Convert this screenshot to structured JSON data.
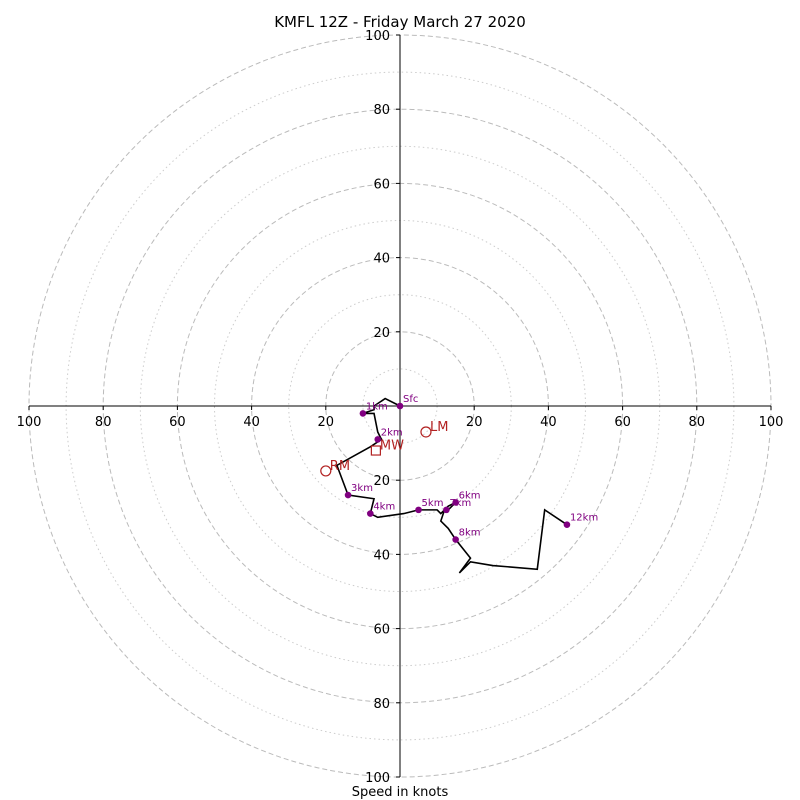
{
  "chart_data": {
    "type": "line",
    "title": "KMFL 12Z - Friday March 27 2020",
    "xlabel": "Speed in knots",
    "units": "knots",
    "range": [
      -100,
      100
    ],
    "major_rings": [
      20,
      40,
      60,
      80,
      100
    ],
    "minor_rings": [
      10,
      30,
      50,
      70,
      90
    ],
    "x_tick_labels": [
      "100",
      "80",
      "60",
      "40",
      "20",
      "20",
      "40",
      "60",
      "80",
      "100"
    ],
    "x_tick_values": [
      -100,
      -80,
      -60,
      -40,
      -20,
      20,
      40,
      60,
      80,
      100
    ],
    "y_tick_labels": [
      "100",
      "80",
      "60",
      "40",
      "20",
      "20",
      "40",
      "60",
      "80",
      "100"
    ],
    "y_tick_values": [
      100,
      80,
      60,
      40,
      20,
      -20,
      -40,
      -60,
      -80,
      -100
    ],
    "hodograph_trace": [
      [
        0,
        0
      ],
      [
        -4,
        2
      ],
      [
        -7,
        0
      ],
      [
        -7,
        -1
      ],
      [
        -10,
        -2
      ],
      [
        -7,
        -2
      ],
      [
        -6,
        -7
      ],
      [
        -5,
        -9
      ],
      [
        -8,
        -11
      ],
      [
        -17,
        -16
      ],
      [
        -14,
        -24
      ],
      [
        -7,
        -25
      ],
      [
        -8,
        -29
      ],
      [
        -6,
        -30
      ],
      [
        1,
        -29
      ],
      [
        5,
        -28
      ],
      [
        10,
        -28
      ],
      [
        11,
        -29
      ],
      [
        13,
        -27
      ],
      [
        15,
        -26
      ],
      [
        13,
        -28
      ],
      [
        12,
        -28
      ],
      [
        11,
        -31
      ],
      [
        13,
        -33
      ],
      [
        15,
        -36
      ],
      [
        19,
        -41
      ],
      [
        16,
        -45
      ],
      [
        19,
        -42
      ],
      [
        25,
        -43
      ],
      [
        37,
        -44
      ],
      [
        39,
        -28
      ],
      [
        45,
        -32
      ]
    ],
    "height_markers": [
      {
        "label": "Sfc",
        "u": 0,
        "v": 0
      },
      {
        "label": "1km",
        "u": -10,
        "v": -2
      },
      {
        "label": "2km",
        "u": -6,
        "v": -9
      },
      {
        "label": "3km",
        "u": -14,
        "v": -24
      },
      {
        "label": "4km",
        "u": -8,
        "v": -29
      },
      {
        "label": "5km",
        "u": 5,
        "v": -28
      },
      {
        "label": "6km",
        "u": 15,
        "v": -26
      },
      {
        "label": "7km",
        "u": 12.5,
        "v": -28
      },
      {
        "label": "8km",
        "u": 15,
        "v": -36
      },
      {
        "label": "12km",
        "u": 45,
        "v": -32
      }
    ],
    "motion_markers": [
      {
        "label": "LM",
        "u": 7,
        "v": -7,
        "shape": "circle"
      },
      {
        "label": "RM",
        "u": -20,
        "v": -17.5,
        "shape": "circle"
      },
      {
        "label": "MW",
        "u": -6.5,
        "v": -12,
        "shape": "square"
      }
    ],
    "colors": {
      "trace": "#000000",
      "markers": "#800080",
      "motion": "#b22222",
      "grid": "#bbbbbb"
    }
  }
}
